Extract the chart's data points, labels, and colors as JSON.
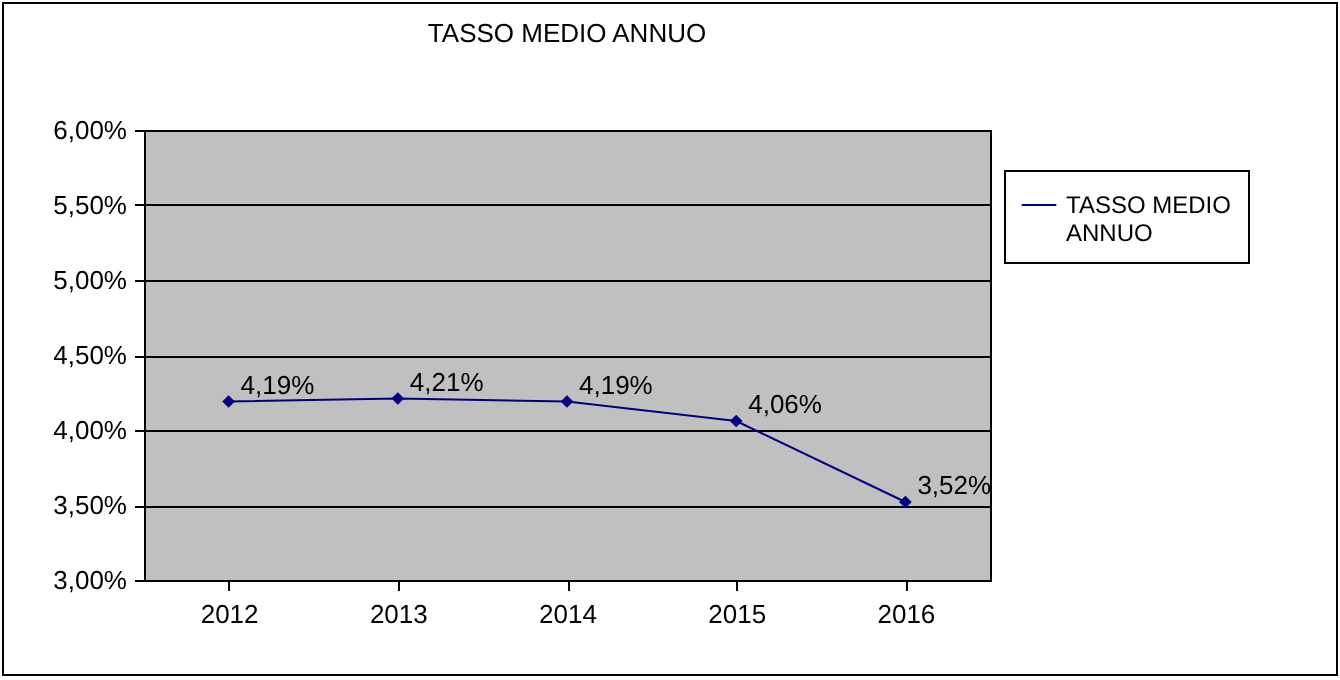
{
  "chart_data": {
    "type": "line",
    "title": "TASSO MEDIO ANNUO",
    "categories": [
      "2012",
      "2013",
      "2014",
      "2015",
      "2016"
    ],
    "series": [
      {
        "name": "TASSO MEDIO ANNUO",
        "color": "#000080",
        "values": [
          4.19,
          4.21,
          4.19,
          4.06,
          3.52
        ],
        "value_labels": [
          "4,19%",
          "4,21%",
          "4,19%",
          "4,06%",
          "3,52%"
        ]
      }
    ],
    "ylim": [
      3,
      6
    ],
    "yticks": [
      {
        "value": 3,
        "label": "3,00%"
      },
      {
        "value": 3.5,
        "label": "3,50%"
      },
      {
        "value": 4,
        "label": "4,00%"
      },
      {
        "value": 4.5,
        "label": "4,50%"
      },
      {
        "value": 5,
        "label": "5,00%"
      },
      {
        "value": 5.5,
        "label": "5,50%"
      },
      {
        "value": 6,
        "label": "6,00%"
      }
    ],
    "grid": "y",
    "legend": "right",
    "marker": "diamond",
    "line_style": "solid"
  }
}
